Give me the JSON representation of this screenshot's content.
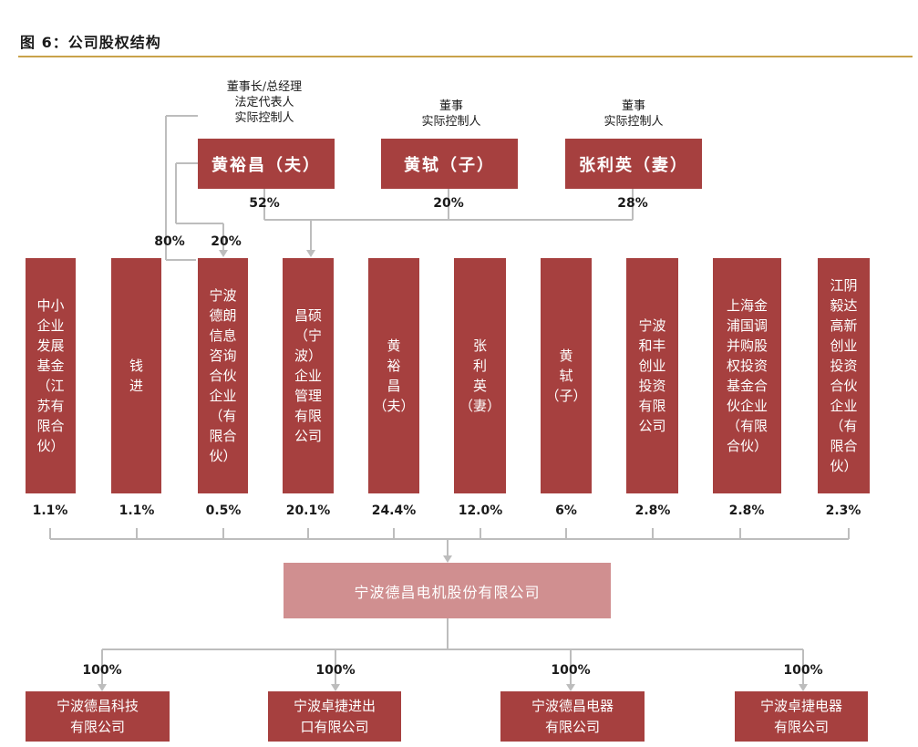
{
  "caption": "图 6：公司股权结构",
  "controllers": [
    {
      "roles": "董事长/总经理\n法定代表人\n实际控制人",
      "name": "黄裕昌（夫）",
      "pct": "52%"
    },
    {
      "roles": "董事\n实际控制人",
      "name": "黄轼（子）",
      "pct": "20%"
    },
    {
      "roles": "董事\n实际控制人",
      "name": "张利英（妻）",
      "pct": "28%"
    }
  ],
  "split_pcts": {
    "left": "80%",
    "right": "20%"
  },
  "shareholders": [
    {
      "name": "中小\n企业\n发展\n基金\n（江\n苏有\n限合\n伙）",
      "pct": "1.1%"
    },
    {
      "name": "钱\n进",
      "pct": "1.1%"
    },
    {
      "name": "宁波\n德朗\n信息\n咨询\n合伙\n企业\n（有\n限合\n伙）",
      "pct": "0.5%"
    },
    {
      "name": "昌硕\n（宁\n波）\n企业\n管理\n有限\n公司",
      "pct": "20.1%"
    },
    {
      "name": "黄\n裕\n昌\n（夫）",
      "pct": "24.4%"
    },
    {
      "name": "张\n利\n英\n（妻）",
      "pct": "12.0%"
    },
    {
      "name": "黄\n轼\n（子）",
      "pct": "6%"
    },
    {
      "name": "宁波\n和丰\n创业\n投资\n有限\n公司",
      "pct": "2.8%"
    },
    {
      "name": "上海金\n浦国调\n并购股\n权投资\n基金合\n伙企业\n（有限\n合伙）",
      "pct": "2.8%"
    },
    {
      "name": "江阴\n毅达\n高新\n创业\n投资\n合伙\n企业\n（有\n限合\n伙）",
      "pct": "2.3%"
    }
  ],
  "company": "宁波德昌电机股份有限公司",
  "subsidiaries": [
    {
      "name": "宁波德昌科技\n有限公司",
      "pct": "100%"
    },
    {
      "name": "宁波卓捷进出\n口有限公司",
      "pct": "100%"
    },
    {
      "name": "宁波德昌电器\n有限公司",
      "pct": "100%"
    },
    {
      "name": "宁波卓捷电器\n有限公司",
      "pct": "100%"
    }
  ]
}
